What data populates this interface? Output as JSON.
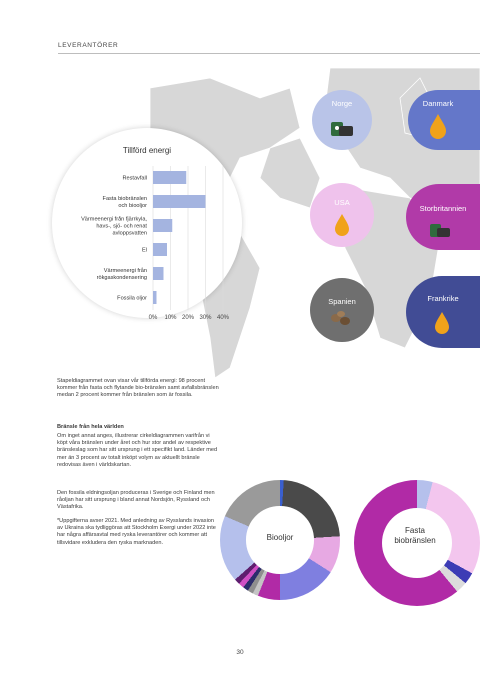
{
  "header": {
    "section": "LEVERANTÖRER"
  },
  "map": {
    "countries": [
      {
        "name": "Norge",
        "color": "#b9c4e8",
        "icon": "biomass-and-waste-icon"
      },
      {
        "name": "Danmark",
        "color": "#6477c9",
        "icon": "oil-drop-icon"
      },
      {
        "name": "USA",
        "color": "#efc2ec",
        "icon": "oil-drop-icon"
      },
      {
        "name": "Storbritannien",
        "color": "#b13aa8",
        "icon": "biomass-and-waste-icon"
      },
      {
        "name": "Spanien",
        "color": "#6f6f6f",
        "icon": "olive-pits-icon"
      },
      {
        "name": "Frankrike",
        "color": "#414c95",
        "icon": "oil-drop-icon"
      }
    ]
  },
  "chart_data": {
    "type": "bar",
    "orientation": "horizontal",
    "title": "Tillförd energi",
    "categories": [
      "Restavfall",
      "Fasta biobränslen och biooljor",
      "Värmeenergi från fjärrkyla, havs-, sjö- och renat avloppsvatten",
      "El",
      "Värmeenergi från rökgaskondensering",
      "Fossila oljor"
    ],
    "category_lines": [
      [
        "Restavfall"
      ],
      [
        "Fasta biobränslen",
        "och biooljor"
      ],
      [
        "Värmeenergi från fjärrkyla,",
        "havs-, sjö- och renat",
        "avloppsvatten"
      ],
      [
        "El"
      ],
      [
        "Värmeenergi från",
        "rökgaskondensering"
      ],
      [
        "Fossila oljor"
      ]
    ],
    "values": [
      19,
      30,
      11,
      8,
      6,
      2
    ],
    "xlim": [
      0,
      40
    ],
    "ticks": [
      "0%",
      "10%",
      "20%",
      "30%",
      "40%"
    ],
    "grid": true,
    "bar_color": "#a4b4e0"
  },
  "body": {
    "caption": "Stapeldiagrammet ovan visar vår tillförda energi: 98 procent kommer från fasta och flytande bio-bränslen samt avfallsbränslen medan 2 procent kommer från bränslen som är fossila.",
    "heading": "Bränsle från hela världen",
    "paragraph1": "Om inget annat anges, illustrerar cirkeldiagrammen varifrån vi köpt våra bränslen under året och hur stor andel av respektive bränsleslag som har sitt ursprung i ett specifikt land. Länder med mer än 3 procent av totalt inköpt volym av aktuellt bränsle redovisas även i världskartan.",
    "paragraph2": "Den fossila eldningsoljan produceras i Sverige och Finland men råoljan har sitt ursprung i bland annat Nordsjön, Ryssland och Västafrika.",
    "paragraph3": "*Uppgifterna avser 2021. Med anledning av Rysslands invasion av Ukraina ska tydliggöras att Stockholm Exergi under 2022 inte har några affärsavtal med ryska leverantörer och kommer att tillsvidare exkludera den ryska marknaden."
  },
  "donuts": {
    "bioolja": {
      "label": "Biooljor",
      "segments": [
        {
          "color": "#3a5fcf",
          "share": 1
        },
        {
          "color": "#4a4a4a",
          "share": 23
        },
        {
          "color": "#e7a9e3",
          "share": 10
        },
        {
          "color": "#7f7fe0",
          "share": 16
        },
        {
          "color": "#b12aa6",
          "share": 6
        },
        {
          "color": "#c4c4c4",
          "share": 1.5
        },
        {
          "color": "#8e8e8e",
          "share": 1.5
        },
        {
          "color": "#2c2c6c",
          "share": 1.5
        },
        {
          "color": "#d04fc4",
          "share": 1.5
        },
        {
          "color": "#5e1e6e",
          "share": 1.5
        },
        {
          "color": "#b5c0ec",
          "share": 18
        },
        {
          "color": "#9a9a9a",
          "share": 18.5
        }
      ]
    },
    "fasta": {
      "label_lines": [
        "Fasta",
        "biobränslen"
      ],
      "segments": [
        {
          "color": "#b5c0ec",
          "share": 4
        },
        {
          "color": "#f3c6ee",
          "share": 29
        },
        {
          "color": "#3c3cb5",
          "share": 3
        },
        {
          "color": "#dcdcdc",
          "share": 3
        },
        {
          "color": "#b12aa6",
          "share": 61
        }
      ]
    }
  },
  "footer": {
    "page_number": "30"
  }
}
